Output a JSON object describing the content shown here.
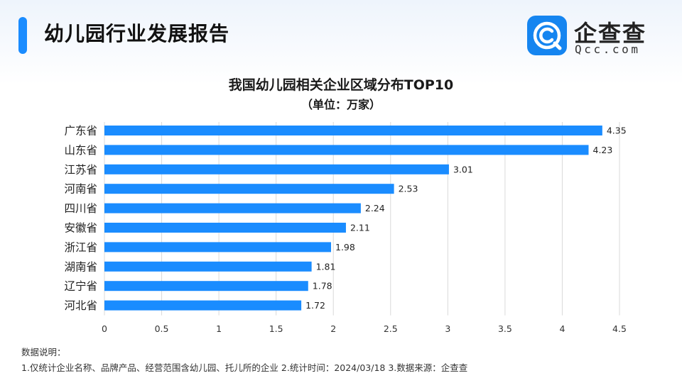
{
  "header": {
    "title": "幼儿园行业发展报告",
    "logo_cn": "企查查",
    "logo_en": "Qcc.com",
    "accent_color": "#1a8cff"
  },
  "chart_data": {
    "type": "bar",
    "orientation": "horizontal",
    "title": "我国幼儿园相关企业区域分布TOP10",
    "subtitle": "（单位：万家）",
    "categories": [
      "广东省",
      "山东省",
      "江苏省",
      "河南省",
      "四川省",
      "安徽省",
      "浙江省",
      "湖南省",
      "辽宁省",
      "河北省"
    ],
    "values": [
      4.35,
      4.23,
      3.01,
      2.53,
      2.24,
      2.11,
      1.98,
      1.81,
      1.78,
      1.72
    ],
    "xlim": [
      0,
      4.5
    ],
    "xticks": [
      "0",
      "0.5",
      "1",
      "1.5",
      "2",
      "2.5",
      "3",
      "3.5",
      "4",
      "4.5"
    ],
    "grid": true,
    "bar_color": "#1a8cff"
  },
  "notes": {
    "heading": "数据说明：",
    "line": "1.仅统计企业名称、品牌产品、经营范围含幼儿园、托儿所的企业   2.统计时间：2024/03/18   3.数据来源：企查查"
  }
}
